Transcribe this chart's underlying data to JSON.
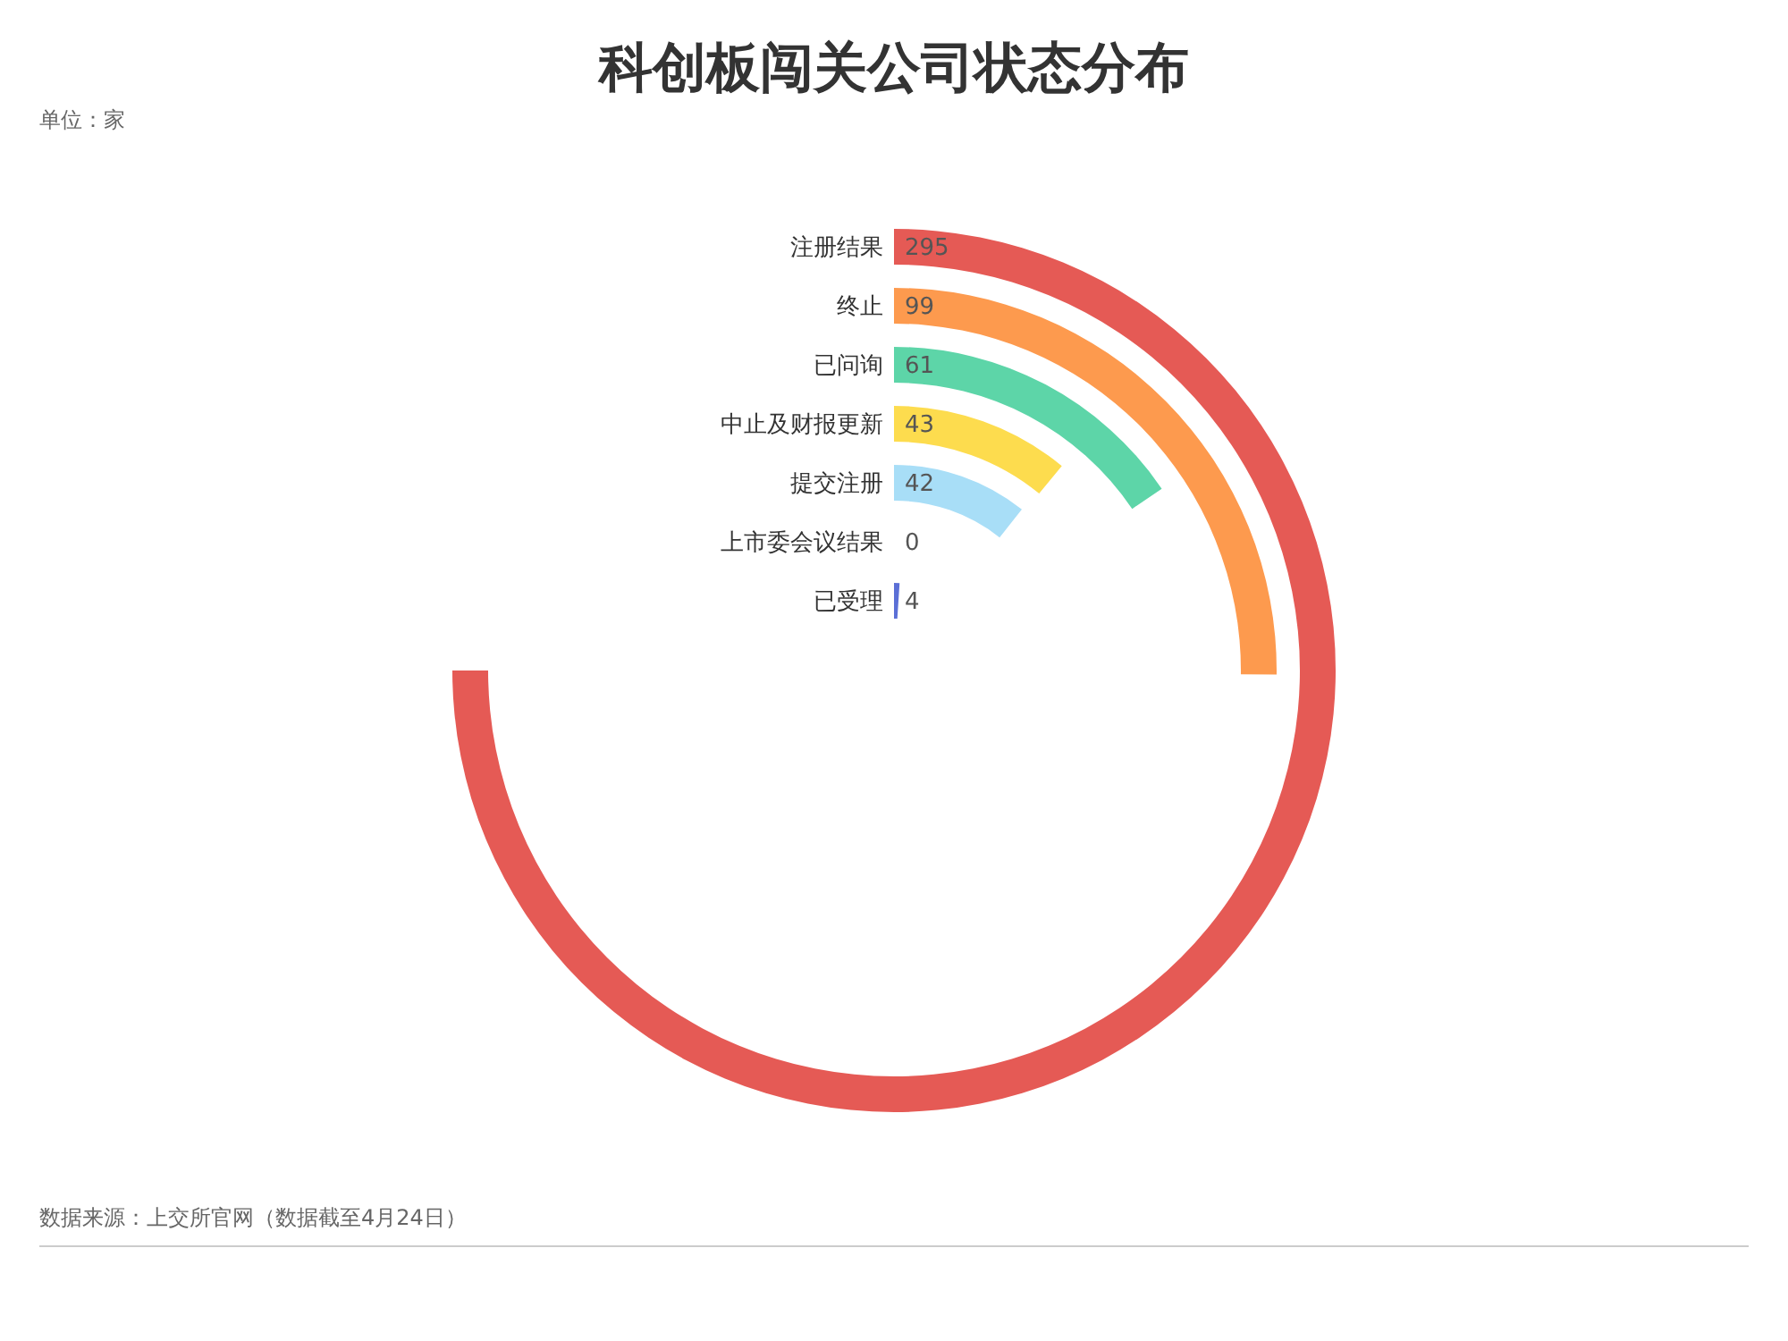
{
  "chart_data": {
    "type": "other",
    "title": "科创板闯关公司状态分布",
    "subtitle": "单位：家",
    "categories": [
      "注册结果",
      "终止",
      "已问询",
      "中止及财报更新",
      "提交注册",
      "上市委会议结果",
      "已受理"
    ],
    "values": [
      295,
      99,
      61,
      43,
      42,
      0,
      4
    ],
    "colors": [
      "#e55a55",
      "#fd9a4e",
      "#5dd5a8",
      "#fddc4e",
      "#a8def7",
      "#6a5fdc",
      "#5b6fd6"
    ],
    "data_labels": true,
    "annotations": [
      "数据来源：上交所官网（数据截至4月24日）"
    ]
  }
}
